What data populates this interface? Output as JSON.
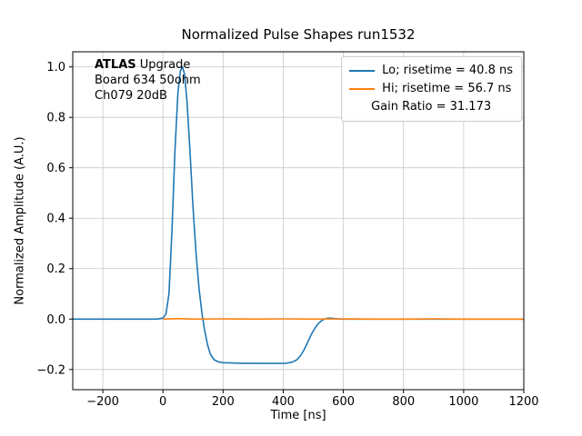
{
  "title": "Normalized Pulse Shapes run1532",
  "annotation": {
    "bold": "ATLAS",
    "rest": " Upgrade",
    "line2": "Board 634 50ohm",
    "line3": "Ch079 20dB"
  },
  "legend": {
    "lo_label": "Lo; risetime = 40.8 ns",
    "hi_label": "Hi; risetime = 56.7 ns",
    "gain_label": "Gain Ratio = 31.173"
  },
  "chart_data": {
    "type": "line",
    "title": "Normalized Pulse Shapes run1532",
    "xlabel": "Time [ns]",
    "ylabel": "Normalized Amplitude (A.U.)",
    "xlim": [
      -300,
      1200
    ],
    "ylim": [
      -0.28,
      1.06
    ],
    "xticks": [
      -200,
      0,
      200,
      400,
      600,
      800,
      1000,
      1200
    ],
    "yticks": [
      -0.2,
      0.0,
      0.2,
      0.4,
      0.6,
      0.8,
      1.0
    ],
    "grid": true,
    "grid_color": "#c8c8c8",
    "legend_position": "upper right",
    "series": [
      {
        "name": "Lo; risetime = 40.8 ns",
        "color": "#1f77b4",
        "points": [
          [
            -300,
            0
          ],
          [
            -250,
            0
          ],
          [
            -200,
            0
          ],
          [
            -150,
            0
          ],
          [
            -100,
            0
          ],
          [
            -50,
            0
          ],
          [
            -20,
            0
          ],
          [
            0,
            0.004
          ],
          [
            10,
            0.02
          ],
          [
            20,
            0.1
          ],
          [
            30,
            0.35
          ],
          [
            40,
            0.67
          ],
          [
            50,
            0.9
          ],
          [
            58,
            0.985
          ],
          [
            65,
            1.0
          ],
          [
            72,
            0.97
          ],
          [
            80,
            0.86
          ],
          [
            90,
            0.66
          ],
          [
            100,
            0.44
          ],
          [
            110,
            0.26
          ],
          [
            120,
            0.12
          ],
          [
            130,
            0.02
          ],
          [
            138,
            -0.04
          ],
          [
            148,
            -0.1
          ],
          [
            158,
            -0.14
          ],
          [
            170,
            -0.161
          ],
          [
            185,
            -0.17
          ],
          [
            200,
            -0.173
          ],
          [
            230,
            -0.174
          ],
          [
            260,
            -0.175
          ],
          [
            300,
            -0.175
          ],
          [
            340,
            -0.176
          ],
          [
            380,
            -0.176
          ],
          [
            410,
            -0.175
          ],
          [
            430,
            -0.171
          ],
          [
            445,
            -0.162
          ],
          [
            458,
            -0.145
          ],
          [
            470,
            -0.12
          ],
          [
            482,
            -0.09
          ],
          [
            494,
            -0.06
          ],
          [
            506,
            -0.035
          ],
          [
            518,
            -0.016
          ],
          [
            530,
            -0.004
          ],
          [
            542,
            0.002
          ],
          [
            555,
            0.004
          ],
          [
            570,
            0.002
          ],
          [
            590,
            0
          ],
          [
            620,
            0
          ],
          [
            700,
            0
          ],
          [
            800,
            0
          ],
          [
            900,
            0
          ],
          [
            1000,
            0
          ],
          [
            1100,
            0
          ],
          [
            1200,
            0
          ]
        ]
      },
      {
        "name": "Hi; risetime = 56.7 ns",
        "color": "#ff7f0e",
        "points": [
          [
            0,
            0
          ],
          [
            50,
            0.002
          ],
          [
            100,
            0
          ],
          [
            200,
            0.001
          ],
          [
            300,
            0
          ],
          [
            400,
            0.001
          ],
          [
            500,
            0
          ],
          [
            600,
            0.001
          ],
          [
            700,
            0
          ],
          [
            800,
            0
          ],
          [
            900,
            0.001
          ],
          [
            1000,
            0
          ],
          [
            1100,
            0
          ],
          [
            1200,
            0
          ]
        ]
      },
      {
        "name": "Gain Ratio = 31.173",
        "color": "none",
        "points": []
      }
    ]
  }
}
